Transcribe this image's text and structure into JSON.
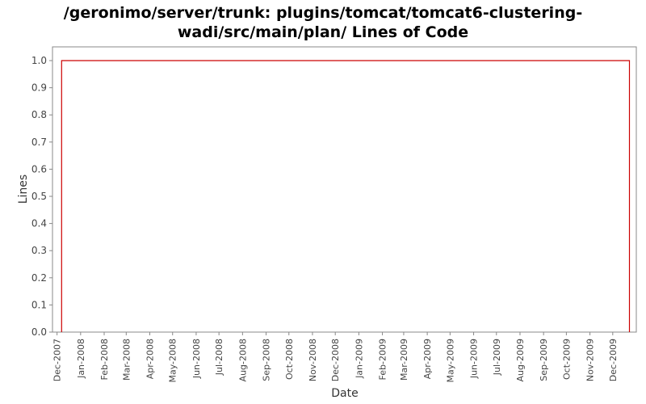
{
  "chart_data": {
    "type": "line",
    "title_lines": [
      "/geronimo/server/trunk: plugins/tomcat/tomcat6-clustering-",
      "wadi/src/main/plan/ Lines of Code"
    ],
    "xlabel": "Date",
    "ylabel": "Lines",
    "ylim": [
      0.0,
      1.0
    ],
    "yticks": [
      "0.0",
      "0.1",
      "0.2",
      "0.3",
      "0.4",
      "0.5",
      "0.6",
      "0.7",
      "0.8",
      "0.9",
      "1.0"
    ],
    "xlim": [
      "2007-11-25",
      "2010-01-01"
    ],
    "xticks": [
      {
        "label": "Dec-2007",
        "date": "2007-12-01"
      },
      {
        "label": "Jan-2008",
        "date": "2008-01-01"
      },
      {
        "label": "Feb-2008",
        "date": "2008-02-01"
      },
      {
        "label": "Mar-2008",
        "date": "2008-03-01"
      },
      {
        "label": "Apr-2008",
        "date": "2008-04-01"
      },
      {
        "label": "May-2008",
        "date": "2008-05-01"
      },
      {
        "label": "Jun-2008",
        "date": "2008-06-01"
      },
      {
        "label": "Jul-2008",
        "date": "2008-07-01"
      },
      {
        "label": "Aug-2008",
        "date": "2008-08-01"
      },
      {
        "label": "Sep-2008",
        "date": "2008-09-01"
      },
      {
        "label": "Oct-2008",
        "date": "2008-10-01"
      },
      {
        "label": "Nov-2008",
        "date": "2008-11-01"
      },
      {
        "label": "Dec-2008",
        "date": "2008-12-01"
      },
      {
        "label": "Jan-2009",
        "date": "2009-01-01"
      },
      {
        "label": "Feb-2009",
        "date": "2009-02-01"
      },
      {
        "label": "Mar-2009",
        "date": "2009-03-01"
      },
      {
        "label": "Apr-2009",
        "date": "2009-04-01"
      },
      {
        "label": "May-2009",
        "date": "2009-05-01"
      },
      {
        "label": "Jun-2009",
        "date": "2009-06-01"
      },
      {
        "label": "Jul-2009",
        "date": "2009-07-01"
      },
      {
        "label": "Aug-2009",
        "date": "2009-08-01"
      },
      {
        "label": "Sep-2009",
        "date": "2009-09-01"
      },
      {
        "label": "Oct-2009",
        "date": "2009-10-01"
      },
      {
        "label": "Nov-2009",
        "date": "2009-11-01"
      },
      {
        "label": "Dec-2009",
        "date": "2009-12-01"
      }
    ],
    "series": [
      {
        "color": "#cc0000",
        "points": [
          {
            "x": "2007-12-07",
            "y": 0
          },
          {
            "x": "2007-12-07",
            "y": 1
          },
          {
            "x": "2009-12-23",
            "y": 1
          },
          {
            "x": "2009-12-23",
            "y": 0
          }
        ]
      }
    ],
    "grid": false,
    "legend": "none"
  }
}
